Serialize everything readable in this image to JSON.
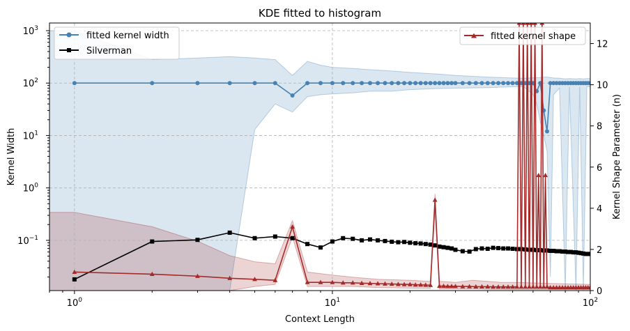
{
  "chart_data": {
    "type": "line",
    "title": "KDE fitted to histogram",
    "xlabel": "Context Length",
    "ylabel_left": "Kernel Width",
    "ylabel_right": "Kernel Shape Parameter (n)",
    "x_scale": "log",
    "xlim": [
      0.8,
      100
    ],
    "y_left_scale": "log",
    "y_left_lim": [
      0.011,
      1400
    ],
    "y_right_lim": [
      0,
      13
    ],
    "x_ticks": [
      {
        "v": 1,
        "base": "10",
        "exp": "0"
      },
      {
        "v": 10,
        "base": "10",
        "exp": "1"
      },
      {
        "v": 100,
        "base": "10",
        "exp": "2"
      }
    ],
    "y_left_ticks": [
      {
        "v": 0.1,
        "base": "10",
        "exp": "−1"
      },
      {
        "v": 1,
        "base": "10",
        "exp": "0"
      },
      {
        "v": 10,
        "base": "10",
        "exp": "1"
      },
      {
        "v": 100,
        "base": "10",
        "exp": "2"
      },
      {
        "v": 1000,
        "base": "10",
        "exp": "3"
      }
    ],
    "y_right_ticks": [
      "0",
      "2",
      "4",
      "6",
      "8",
      "10",
      "12"
    ],
    "grid": true,
    "legend_left": {
      "placement": "upper-left",
      "entries": [
        "fitted kernel width",
        "Silverman"
      ]
    },
    "legend_right": {
      "placement": "upper-right",
      "entries": [
        "fitted kernel shape"
      ]
    },
    "colors": {
      "width": "#4682b4",
      "silverman": "#000000",
      "shape": "#a52a2a",
      "width_band": "#4682b4",
      "shape_band": "#a52a2a"
    },
    "series": [
      {
        "name": "fitted kernel width",
        "axis": "left",
        "marker": "circle",
        "points": [
          [
            1,
            100
          ],
          [
            2,
            100
          ],
          [
            3,
            100
          ],
          [
            4,
            100
          ],
          [
            5,
            100
          ],
          [
            6,
            100
          ],
          [
            7,
            58
          ],
          [
            8,
            100
          ],
          [
            9,
            100
          ],
          [
            10,
            100
          ],
          [
            11,
            100
          ],
          [
            12,
            100
          ],
          [
            13,
            100
          ],
          [
            14,
            100
          ],
          [
            15,
            100
          ],
          [
            16,
            100
          ],
          [
            17,
            100
          ],
          [
            18,
            100
          ],
          [
            19,
            100
          ],
          [
            20,
            100
          ],
          [
            21,
            100
          ],
          [
            22,
            100
          ],
          [
            23,
            100
          ],
          [
            24,
            100
          ],
          [
            25,
            100
          ],
          [
            26,
            100
          ],
          [
            27,
            100
          ],
          [
            28,
            100
          ],
          [
            29,
            100
          ],
          [
            30,
            100
          ],
          [
            32,
            100
          ],
          [
            34,
            100
          ],
          [
            36,
            100
          ],
          [
            38,
            100
          ],
          [
            40,
            100
          ],
          [
            42,
            100
          ],
          [
            44,
            100
          ],
          [
            46,
            100
          ],
          [
            48,
            100
          ],
          [
            50,
            100
          ],
          [
            52,
            100
          ],
          [
            54,
            100
          ],
          [
            56,
            100
          ],
          [
            58,
            100
          ],
          [
            60,
            100
          ],
          [
            62,
            70
          ],
          [
            64,
            100
          ],
          [
            66,
            30
          ],
          [
            68,
            12
          ],
          [
            70,
            100
          ],
          [
            72,
            100
          ],
          [
            74,
            100
          ],
          [
            76,
            100
          ],
          [
            78,
            100
          ],
          [
            80,
            100
          ],
          [
            82,
            100
          ],
          [
            84,
            100
          ],
          [
            86,
            100
          ],
          [
            88,
            100
          ],
          [
            90,
            100
          ],
          [
            92,
            100
          ],
          [
            94,
            100
          ],
          [
            96,
            100
          ],
          [
            98,
            100
          ],
          [
            100,
            100
          ]
        ],
        "band": [
          [
            0.8,
            0.011,
            1000
          ],
          [
            1,
            0.011,
            1000
          ],
          [
            2,
            0.011,
            280
          ],
          [
            3,
            0.011,
            300
          ],
          [
            4,
            0.011,
            320
          ],
          [
            5,
            13,
            300
          ],
          [
            6,
            40,
            280
          ],
          [
            7,
            28,
            140
          ],
          [
            8,
            55,
            260
          ],
          [
            9,
            60,
            220
          ],
          [
            10,
            62,
            200
          ],
          [
            12,
            65,
            190
          ],
          [
            14,
            70,
            180
          ],
          [
            17,
            70,
            170
          ],
          [
            20,
            75,
            160
          ],
          [
            25,
            78,
            150
          ],
          [
            30,
            80,
            140
          ],
          [
            40,
            82,
            130
          ],
          [
            50,
            85,
            125
          ],
          [
            55,
            86,
            124
          ],
          [
            60,
            60,
            126
          ],
          [
            62,
            40,
            127
          ],
          [
            64,
            18,
            128
          ],
          [
            66,
            10,
            130
          ],
          [
            68,
            5,
            130
          ],
          [
            70,
            0.02,
            128
          ],
          [
            72,
            60,
            125
          ],
          [
            76,
            80,
            124
          ],
          [
            80,
            0.011,
            120
          ],
          [
            83,
            85,
            122
          ],
          [
            88,
            0.011,
            120
          ],
          [
            91,
            85,
            122
          ],
          [
            94,
            0.011,
            120
          ],
          [
            97,
            85,
            122
          ],
          [
            100,
            85,
            122
          ]
        ]
      },
      {
        "name": "Silverman",
        "axis": "left",
        "marker": "square",
        "points": [
          [
            1,
            0.018
          ],
          [
            2,
            0.095
          ],
          [
            3,
            0.102
          ],
          [
            4,
            0.14
          ],
          [
            5,
            0.11
          ],
          [
            6,
            0.118
          ],
          [
            7,
            0.11
          ],
          [
            8,
            0.085
          ],
          [
            9,
            0.073
          ],
          [
            10,
            0.095
          ],
          [
            11,
            0.11
          ],
          [
            12,
            0.107
          ],
          [
            13,
            0.1
          ],
          [
            14,
            0.104
          ],
          [
            15,
            0.1
          ],
          [
            16,
            0.097
          ],
          [
            17,
            0.094
          ],
          [
            18,
            0.092
          ],
          [
            19,
            0.093
          ],
          [
            20,
            0.09
          ],
          [
            21,
            0.088
          ],
          [
            22,
            0.087
          ],
          [
            23,
            0.085
          ],
          [
            24,
            0.083
          ],
          [
            25,
            0.08
          ],
          [
            26,
            0.076
          ],
          [
            27,
            0.074
          ],
          [
            28,
            0.072
          ],
          [
            29,
            0.07
          ],
          [
            30,
            0.066
          ],
          [
            32,
            0.062
          ],
          [
            34,
            0.061
          ],
          [
            36,
            0.068
          ],
          [
            38,
            0.07
          ],
          [
            40,
            0.069
          ],
          [
            42,
            0.072
          ],
          [
            44,
            0.071
          ],
          [
            46,
            0.07
          ],
          [
            48,
            0.07
          ],
          [
            50,
            0.069
          ],
          [
            52,
            0.068
          ],
          [
            54,
            0.068
          ],
          [
            56,
            0.067
          ],
          [
            58,
            0.066
          ],
          [
            60,
            0.066
          ],
          [
            62,
            0.065
          ],
          [
            64,
            0.065
          ],
          [
            66,
            0.064
          ],
          [
            68,
            0.064
          ],
          [
            70,
            0.063
          ],
          [
            72,
            0.063
          ],
          [
            74,
            0.062
          ],
          [
            76,
            0.062
          ],
          [
            78,
            0.061
          ],
          [
            80,
            0.061
          ],
          [
            82,
            0.06
          ],
          [
            84,
            0.06
          ],
          [
            86,
            0.059
          ],
          [
            88,
            0.059
          ],
          [
            90,
            0.058
          ],
          [
            92,
            0.057
          ],
          [
            94,
            0.056
          ],
          [
            96,
            0.055
          ],
          [
            98,
            0.055
          ],
          [
            100,
            0.055
          ]
        ]
      },
      {
        "name": "fitted kernel shape",
        "axis": "right",
        "marker": "triangle",
        "points": [
          [
            1,
            0.9
          ],
          [
            2,
            0.8
          ],
          [
            3,
            0.7
          ],
          [
            4,
            0.6
          ],
          [
            5,
            0.55
          ],
          [
            6,
            0.5
          ],
          [
            7,
            3.1
          ],
          [
            8,
            0.4
          ],
          [
            9,
            0.4
          ],
          [
            10,
            0.4
          ],
          [
            11,
            0.38
          ],
          [
            12,
            0.38
          ],
          [
            13,
            0.36
          ],
          [
            14,
            0.35
          ],
          [
            15,
            0.34
          ],
          [
            16,
            0.33
          ],
          [
            17,
            0.32
          ],
          [
            18,
            0.31
          ],
          [
            19,
            0.3
          ],
          [
            20,
            0.3
          ],
          [
            21,
            0.28
          ],
          [
            22,
            0.28
          ],
          [
            23,
            0.27
          ],
          [
            24,
            0.26
          ],
          [
            25,
            4.4
          ],
          [
            26,
            0.22
          ],
          [
            27,
            0.22
          ],
          [
            28,
            0.21
          ],
          [
            29,
            0.21
          ],
          [
            30,
            0.21
          ],
          [
            32,
            0.2
          ],
          [
            34,
            0.2
          ],
          [
            36,
            0.19
          ],
          [
            38,
            0.19
          ],
          [
            40,
            0.19
          ],
          [
            42,
            0.18
          ],
          [
            44,
            0.18
          ],
          [
            46,
            0.18
          ],
          [
            48,
            0.18
          ],
          [
            50,
            0.18
          ],
          [
            52,
            0.18
          ],
          [
            53,
            13
          ],
          [
            54,
            0.18
          ],
          [
            55,
            13
          ],
          [
            56,
            0.18
          ],
          [
            57,
            13
          ],
          [
            58,
            0.18
          ],
          [
            59,
            13
          ],
          [
            60,
            0.18
          ],
          [
            61,
            13
          ],
          [
            62,
            0.18
          ],
          [
            63,
            5.6
          ],
          [
            64,
            0.18
          ],
          [
            65,
            13
          ],
          [
            66,
            0.18
          ],
          [
            67,
            5.6
          ],
          [
            68,
            0.18
          ],
          [
            70,
            0.15
          ],
          [
            72,
            0.15
          ],
          [
            74,
            0.15
          ],
          [
            76,
            0.15
          ],
          [
            78,
            0.15
          ],
          [
            80,
            0.15
          ],
          [
            82,
            0.15
          ],
          [
            84,
            0.15
          ],
          [
            86,
            0.15
          ],
          [
            88,
            0.15
          ],
          [
            90,
            0.15
          ],
          [
            92,
            0.15
          ],
          [
            94,
            0.15
          ],
          [
            96,
            0.15
          ],
          [
            98,
            0.15
          ],
          [
            100,
            0.15
          ]
        ],
        "band": [
          [
            0.8,
            0,
            3.8
          ],
          [
            1,
            0,
            3.8
          ],
          [
            2,
            0,
            3.1
          ],
          [
            3,
            0,
            2.4
          ],
          [
            4,
            0,
            1.7
          ],
          [
            5,
            0.2,
            1.4
          ],
          [
            6,
            0.3,
            1.3
          ],
          [
            7,
            2.6,
            3.4
          ],
          [
            8,
            0.2,
            0.9
          ],
          [
            10,
            0.2,
            0.75
          ],
          [
            12,
            0.2,
            0.65
          ],
          [
            15,
            0.15,
            0.55
          ],
          [
            20,
            0.12,
            0.5
          ],
          [
            24,
            0.1,
            0.45
          ],
          [
            25,
            3.9,
            4.7
          ],
          [
            26,
            0.08,
            0.45
          ],
          [
            30,
            0.08,
            0.4
          ],
          [
            35,
            0.08,
            0.5
          ],
          [
            40,
            0.06,
            0.45
          ],
          [
            45,
            0.06,
            0.4
          ],
          [
            50,
            0.05,
            0.4
          ],
          [
            52,
            0.05,
            0.4
          ],
          [
            70,
            0.05,
            0.35
          ],
          [
            100,
            0.05,
            0.3
          ]
        ]
      }
    ]
  }
}
